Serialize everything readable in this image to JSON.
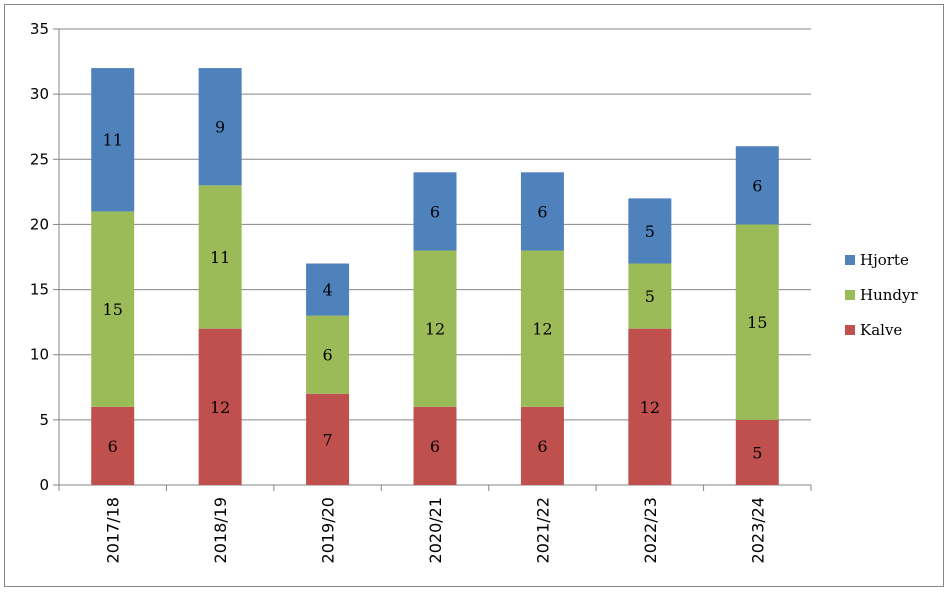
{
  "chart_data": {
    "type": "bar",
    "stacked": true,
    "categories": [
      "2017/18",
      "2018/19",
      "2019/20",
      "2020/21",
      "2021/22",
      "2022/23",
      "2023/24"
    ],
    "series": [
      {
        "name": "Kalve",
        "color": "#C0504D",
        "values": [
          6,
          12,
          7,
          6,
          6,
          12,
          5
        ]
      },
      {
        "name": "Hundyr",
        "color": "#9BBB59",
        "values": [
          15,
          11,
          6,
          12,
          12,
          5,
          15
        ]
      },
      {
        "name": "Hjorte",
        "color": "#4F81BD",
        "values": [
          11,
          9,
          4,
          6,
          6,
          5,
          6
        ]
      }
    ],
    "ylim": [
      0,
      35
    ],
    "yticks": [
      0,
      5,
      10,
      15,
      20,
      25,
      30,
      35
    ],
    "grid": true,
    "legend_position": "right",
    "legend_order": [
      "Hjorte",
      "Hundyr",
      "Kalve"
    ],
    "data_labels": true,
    "x_tick_rotation": "vertical"
  }
}
